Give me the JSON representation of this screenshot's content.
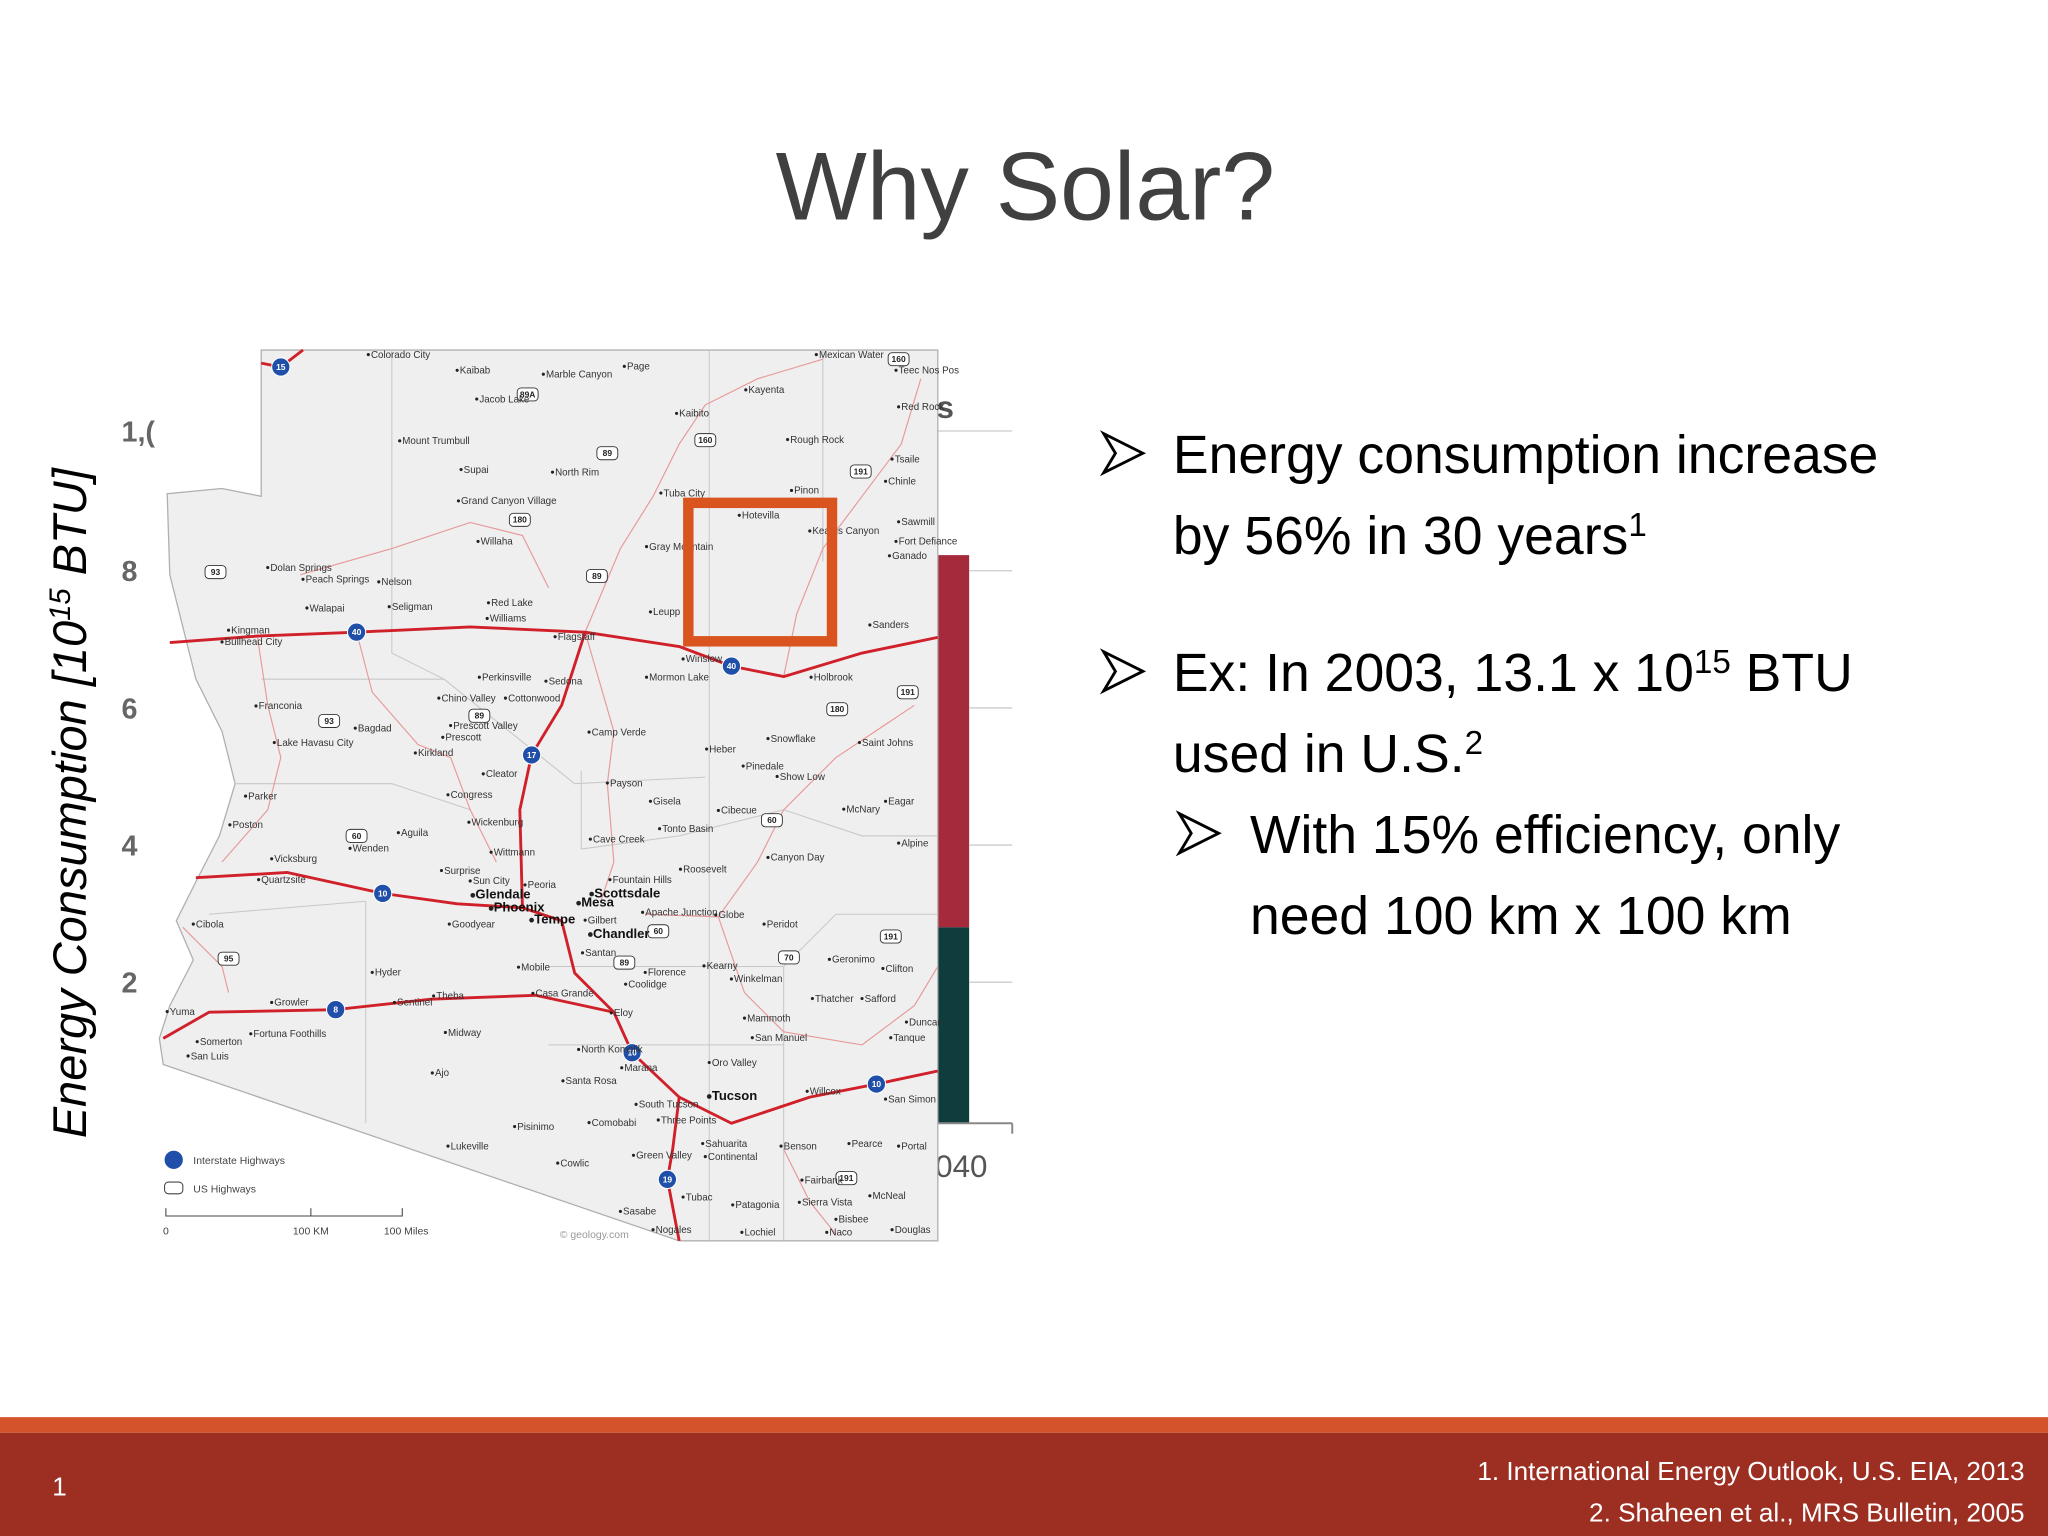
{
  "slide": {
    "title": "Why Solar?",
    "number": 1
  },
  "background_chart": {
    "y_axis_label": [
      {
        "t": "Energy Consumption [10"
      },
      {
        "sup": "15"
      },
      {
        "t": " BTU]"
      }
    ],
    "y_tick_fragments": [
      "1,(",
      "8",
      "6",
      "4",
      "2"
    ],
    "x_tick_fragment": "040",
    "legend_fragment": "s"
  },
  "bullets": [
    {
      "level": 1,
      "lines": [
        [
          {
            "t": "Energy consumption increase"
          }
        ],
        [
          {
            "t": "by 56% in 30 years"
          },
          {
            "sup": "1"
          }
        ]
      ]
    },
    {
      "level": 1,
      "lines": [
        [
          {
            "t": "Ex: In 2003, 13.1 x 10"
          },
          {
            "sup": "15"
          },
          {
            "t": " BTU"
          }
        ],
        [
          {
            "t": "used in U.S."
          },
          {
            "sup": "2"
          }
        ]
      ]
    },
    {
      "level": 2,
      "lines": [
        [
          {
            "t": "With 15% efficiency, only"
          }
        ],
        [
          {
            "t": "need 100 km x 100 km"
          }
        ]
      ]
    }
  ],
  "footer_refs": [
    "1. International Energy Outlook, U.S. EIA, 2013",
    "2. Shaheen et al., MRS Bulletin, 2005"
  ],
  "map": {
    "cities": [
      {
        "name": "Colorado City"
      },
      {
        "name": "Kaibab"
      },
      {
        "name": "Marble Canyon"
      },
      {
        "name": "Page"
      },
      {
        "name": "Mexican Water"
      },
      {
        "name": "Teec Nos Pos"
      },
      {
        "name": "Jacob Lake"
      },
      {
        "name": "Kayenta"
      },
      {
        "name": "Kaibito"
      },
      {
        "name": "Red Rock"
      },
      {
        "name": "Mount Trumbull"
      },
      {
        "name": "Rough Rock"
      },
      {
        "name": "Supai"
      },
      {
        "name": "North Rim"
      },
      {
        "name": "Tsaile"
      },
      {
        "name": "Chinle"
      },
      {
        "name": "Grand Canyon Village"
      },
      {
        "name": "Tuba City"
      },
      {
        "name": "Pinon"
      },
      {
        "name": "Hotevilla"
      },
      {
        "name": "Keams Canyon"
      },
      {
        "name": "Sawmill"
      },
      {
        "name": "Fort Defiance"
      },
      {
        "name": "Ganado"
      },
      {
        "name": "Willaha"
      },
      {
        "name": "Gray Mountain"
      },
      {
        "name": "Dolan Springs"
      },
      {
        "name": "Peach Springs"
      },
      {
        "name": "Nelson"
      },
      {
        "name": "Red Lake"
      },
      {
        "name": "Williams"
      },
      {
        "name": "Walapai"
      },
      {
        "name": "Seligman"
      },
      {
        "name": "Leupp"
      },
      {
        "name": "Kingman"
      },
      {
        "name": "Bullhead City"
      },
      {
        "name": "Flagstaff"
      },
      {
        "name": "Winslow"
      },
      {
        "name": "Sanders"
      },
      {
        "name": "Holbrook"
      },
      {
        "name": "Perkinsville"
      },
      {
        "name": "Sedona"
      },
      {
        "name": "Mormon Lake"
      },
      {
        "name": "Franconia"
      },
      {
        "name": "Chino Valley"
      },
      {
        "name": "Cottonwood"
      },
      {
        "name": "Bagdad"
      },
      {
        "name": "Prescott Valley"
      },
      {
        "name": "Prescott"
      },
      {
        "name": "Camp Verde"
      },
      {
        "name": "Heber"
      },
      {
        "name": "Snowflake"
      },
      {
        "name": "Saint Johns"
      },
      {
        "name": "Lake Havasu City"
      },
      {
        "name": "Kirkland"
      },
      {
        "name": "Cleator"
      },
      {
        "name": "Pinedale"
      },
      {
        "name": "Show Low"
      },
      {
        "name": "Payson"
      },
      {
        "name": "Parker"
      },
      {
        "name": "Congress"
      },
      {
        "name": "Gisela"
      },
      {
        "name": "Cibecue"
      },
      {
        "name": "McNary"
      },
      {
        "name": "Eagar"
      },
      {
        "name": "Poston"
      },
      {
        "name": "Aguila"
      },
      {
        "name": "Wenden"
      },
      {
        "name": "Wickenburg"
      },
      {
        "name": "Cave Creek"
      },
      {
        "name": "Tonto Basin"
      },
      {
        "name": "Alpine"
      },
      {
        "name": "Wittmann"
      },
      {
        "name": "Canyon Day"
      },
      {
        "name": "Vicksburg"
      },
      {
        "name": "Quartzsite"
      },
      {
        "name": "Surprise"
      },
      {
        "name": "Sun City"
      },
      {
        "name": "Peoria"
      },
      {
        "name": "Fountain Hills"
      },
      {
        "name": "Roosevelt"
      },
      {
        "name": "Glendale",
        "major": true
      },
      {
        "name": "Scottsdale",
        "major": true
      },
      {
        "name": "Phoenix",
        "major": true
      },
      {
        "name": "Mesa",
        "major": true
      },
      {
        "name": "Apache Junction"
      },
      {
        "name": "Globe"
      },
      {
        "name": "Tempe",
        "major": true
      },
      {
        "name": "Gilbert"
      },
      {
        "name": "Peridot"
      },
      {
        "name": "Goodyear"
      },
      {
        "name": "Chandler",
        "major": true
      },
      {
        "name": "Cibola"
      },
      {
        "name": "Santan"
      },
      {
        "name": "Geronimo"
      },
      {
        "name": "Mobile"
      },
      {
        "name": "Kearny"
      },
      {
        "name": "Clifton"
      },
      {
        "name": "Hyder"
      },
      {
        "name": "Florence"
      },
      {
        "name": "Coolidge"
      },
      {
        "name": "Winkelman"
      },
      {
        "name": "Casa Grande"
      },
      {
        "name": "Theba"
      },
      {
        "name": "Thatcher"
      },
      {
        "name": "Safford"
      },
      {
        "name": "Growler"
      },
      {
        "name": "Sentinel"
      },
      {
        "name": "Eloy"
      },
      {
        "name": "Yuma"
      },
      {
        "name": "Mammoth"
      },
      {
        "name": "Fortuna Foothills"
      },
      {
        "name": "Duncan"
      },
      {
        "name": "Somerton"
      },
      {
        "name": "Midway"
      },
      {
        "name": "San Manuel"
      },
      {
        "name": "Tanque"
      },
      {
        "name": "San Luis"
      },
      {
        "name": "North Komelik"
      },
      {
        "name": "Marana"
      },
      {
        "name": "Oro Valley"
      },
      {
        "name": "Ajo"
      },
      {
        "name": "Santa Rosa"
      },
      {
        "name": "Willcox"
      },
      {
        "name": "Tucson",
        "major": true
      },
      {
        "name": "San Simon"
      },
      {
        "name": "South Tucson"
      },
      {
        "name": "Pisinimo"
      },
      {
        "name": "Comobabi"
      },
      {
        "name": "Three Points"
      },
      {
        "name": "Sahuarita"
      },
      {
        "name": "Continental"
      },
      {
        "name": "Benson"
      },
      {
        "name": "Pearce"
      },
      {
        "name": "Portal"
      },
      {
        "name": "Lukeville"
      },
      {
        "name": "Green Valley"
      },
      {
        "name": "Cowlic"
      },
      {
        "name": "Fairbank"
      },
      {
        "name": "Tubac"
      },
      {
        "name": "Patagonia"
      },
      {
        "name": "Sierra Vista"
      },
      {
        "name": "McNeal"
      },
      {
        "name": "Bisbee"
      },
      {
        "name": "Sasabe"
      },
      {
        "name": "Nogales"
      },
      {
        "name": "Lochiel"
      },
      {
        "name": "Naco"
      },
      {
        "name": "Douglas"
      }
    ],
    "interstates": [
      "15",
      "40",
      "40",
      "17",
      "10",
      "8",
      "10",
      "10",
      "19"
    ],
    "us_highways": [
      "89A",
      "89",
      "160",
      "160",
      "191",
      "180",
      "89",
      "93",
      "180",
      "191",
      "89",
      "93",
      "60",
      "60",
      "60",
      "70",
      "95",
      "89",
      "191",
      "191"
    ],
    "legend": [
      "Interstate Highways",
      "US Highways"
    ],
    "scale": [
      "0",
      "100 KM",
      "100 Miles"
    ],
    "credit": "© geology.com"
  }
}
